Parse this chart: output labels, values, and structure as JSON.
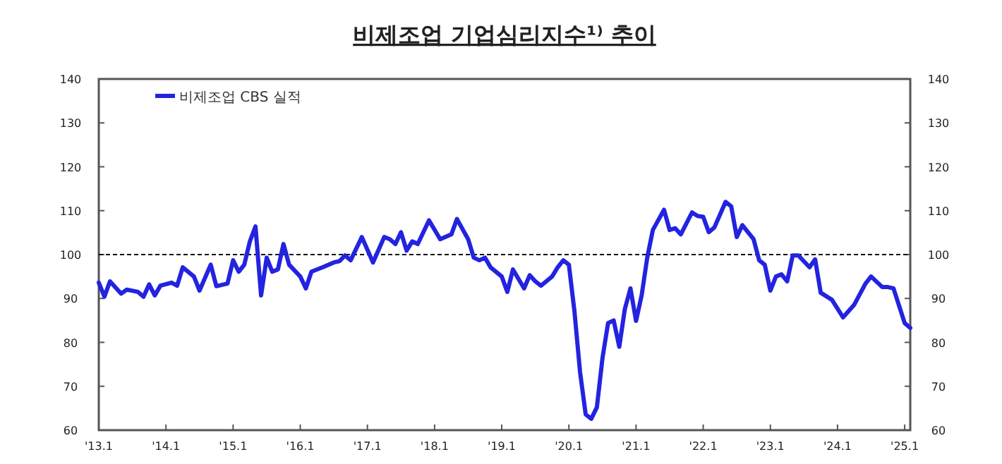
{
  "chart_data": {
    "type": "line",
    "title": "비제조업 기업심리지수¹⁾ 추이",
    "xlim": [
      "2013-01",
      "2025-02"
    ],
    "xticks": [
      {
        "value": "2013-01",
        "label": "'13.1"
      },
      {
        "value": "2014-01",
        "label": "'14.1"
      },
      {
        "value": "2015-01",
        "label": "'15.1"
      },
      {
        "value": "2016-01",
        "label": "'16.1"
      },
      {
        "value": "2017-01",
        "label": "'17.1"
      },
      {
        "value": "2018-01",
        "label": "'18.1"
      },
      {
        "value": "2019-01",
        "label": "'19.1"
      },
      {
        "value": "2020-01",
        "label": "'20.1"
      },
      {
        "value": "2021-01",
        "label": "'21.1"
      },
      {
        "value": "2022-01",
        "label": "'22.1"
      },
      {
        "value": "2023-01",
        "label": "'23.1"
      },
      {
        "value": "2024-01",
        "label": "'24.1"
      },
      {
        "value": "2025-01",
        "label": "'25.1"
      }
    ],
    "ylim": [
      60,
      140
    ],
    "yticks": [
      60,
      70,
      80,
      90,
      100,
      110,
      120,
      130,
      140
    ],
    "y2lim": [
      60,
      140
    ],
    "y2ticks": [
      60,
      70,
      80,
      90,
      100,
      110,
      120,
      130,
      140
    ],
    "ref_lines": [
      {
        "axis": "y",
        "value": 100,
        "color": "#000000",
        "line_style": "dashed"
      }
    ],
    "legend": "top left",
    "grid": false,
    "marker": "none",
    "line_style": "solid",
    "series": [
      {
        "name": "비제조업 CBS 실적",
        "color": "#2323e0",
        "x": [
          "2013-01",
          "2013-02",
          "2013-03",
          "2013-05",
          "2013-06",
          "2013-08",
          "2013-09",
          "2013-10",
          "2013-11",
          "2013-12",
          "2014-02",
          "2014-03",
          "2014-04",
          "2014-06",
          "2014-07",
          "2014-09",
          "2014-10",
          "2014-12",
          "2015-01",
          "2015-02",
          "2015-03",
          "2015-04",
          "2015-05",
          "2015-06",
          "2015-07",
          "2015-08",
          "2015-09",
          "2015-10",
          "2015-11",
          "2016-01",
          "2016-02",
          "2016-03",
          "2016-05",
          "2016-07",
          "2016-08",
          "2016-09",
          "2016-10",
          "2016-12",
          "2017-02",
          "2017-04",
          "2017-05",
          "2017-06",
          "2017-07",
          "2017-08",
          "2017-09",
          "2017-10",
          "2017-12",
          "2018-02",
          "2018-04",
          "2018-05",
          "2018-07",
          "2018-08",
          "2018-09",
          "2018-10",
          "2018-11",
          "2019-01",
          "2019-02",
          "2019-03",
          "2019-05",
          "2019-06",
          "2019-07",
          "2019-08",
          "2019-10",
          "2019-11",
          "2019-12",
          "2020-01",
          "2020-02",
          "2020-03",
          "2020-04",
          "2020-05",
          "2020-06",
          "2020-07",
          "2020-08",
          "2020-09",
          "2020-10",
          "2020-11",
          "2020-12",
          "2021-01",
          "2021-02",
          "2021-03",
          "2021-04",
          "2021-06",
          "2021-07",
          "2021-08",
          "2021-09",
          "2021-11",
          "2021-12",
          "2022-01",
          "2022-02",
          "2022-03",
          "2022-05",
          "2022-06",
          "2022-07",
          "2022-08",
          "2022-10",
          "2022-11",
          "2022-12",
          "2023-01",
          "2023-02",
          "2023-03",
          "2023-04",
          "2023-05",
          "2023-06",
          "2023-08",
          "2023-09",
          "2023-10",
          "2023-12",
          "2024-02",
          "2024-04",
          "2024-06",
          "2024-07",
          "2024-09",
          "2024-10",
          "2024-11",
          "2025-01",
          "2025-02"
        ],
        "values": [
          93.6,
          90.4,
          93.9,
          91.1,
          92,
          91.5,
          90.4,
          93.2,
          90.7,
          92.9,
          93.6,
          92.9,
          97.1,
          95,
          91.8,
          97.7,
          92.8,
          93.4,
          98.7,
          96.1,
          97.7,
          103,
          106.4,
          90.7,
          99.3,
          96.1,
          96.6,
          102.4,
          97.7,
          95,
          92.3,
          96.1,
          97.1,
          98.2,
          98.5,
          99.8,
          98.7,
          104,
          98.2,
          104,
          103.5,
          102.4,
          105.1,
          100.9,
          103,
          102.4,
          107.8,
          103.5,
          104.6,
          108.1,
          103.5,
          99.3,
          98.7,
          99.3,
          97.1,
          95,
          91.5,
          96.6,
          92.3,
          95.3,
          93.9,
          92.9,
          95,
          97.1,
          98.7,
          97.7,
          87,
          73.2,
          63.6,
          62.6,
          65.2,
          76.4,
          84.4,
          85,
          79,
          87.6,
          92.3,
          84.9,
          90.7,
          99.3,
          105.6,
          110.2,
          105.6,
          106,
          104.6,
          109.6,
          108.8,
          108.6,
          105.1,
          106.2,
          112,
          111,
          104,
          106.7,
          103.5,
          98.7,
          97.7,
          91.8,
          95,
          95.5,
          93.9,
          99.8,
          99.8,
          97.1,
          98.9,
          91.3,
          89.7,
          85.7,
          88.6,
          93.4,
          95,
          92.6,
          92.6,
          92.3,
          84.4,
          83.3
        ]
      }
    ]
  }
}
